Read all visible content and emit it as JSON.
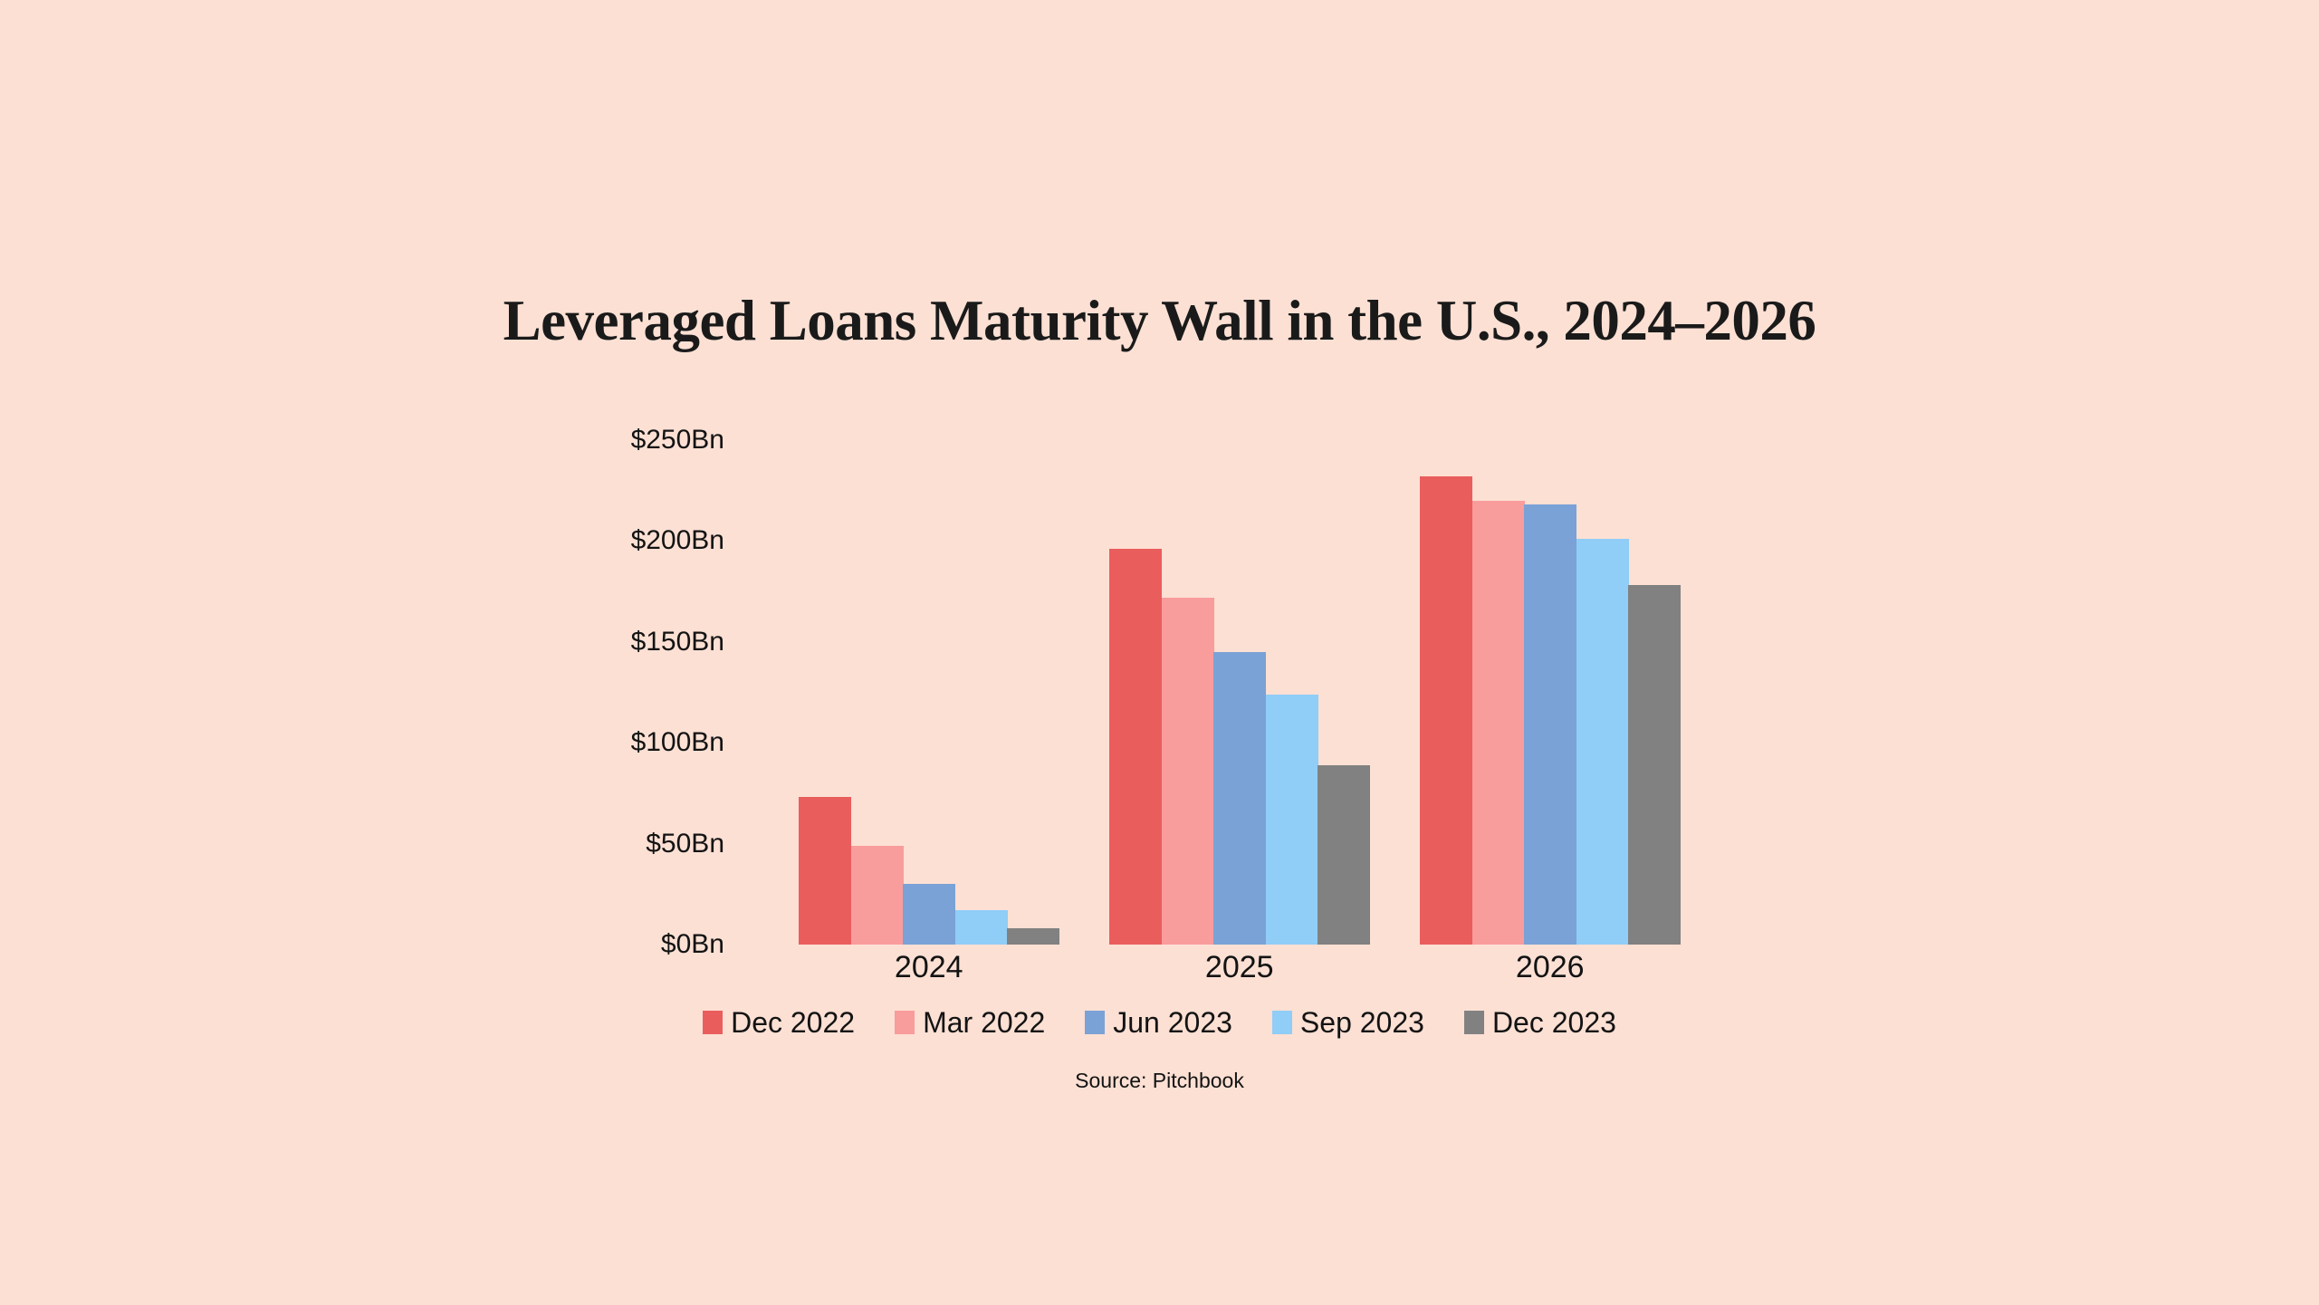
{
  "title": "Leveraged Loans Maturity Wall in the U.S., 2024–2026",
  "source_note": "Source: Pitchbook",
  "colors": {
    "background": "#FCE0D4",
    "text": "#131313",
    "title_text": "#1A1A1A"
  },
  "chart_data": {
    "type": "bar",
    "title": "Leveraged Loans Maturity Wall in the U.S., 2024–2026",
    "xlabel": "",
    "ylabel": "",
    "categories": [
      "2024",
      "2025",
      "2026"
    ],
    "series": [
      {
        "name": "Dec 2022",
        "color": "#EA5D5D",
        "values": [
          73,
          196,
          232
        ]
      },
      {
        "name": "Mar 2022",
        "color": "#F99C9C",
        "values": [
          49,
          172,
          220
        ]
      },
      {
        "name": "Jun 2023",
        "color": "#7AA2D6",
        "values": [
          30,
          145,
          218
        ]
      },
      {
        "name": "Sep 2023",
        "color": "#90CDF7",
        "values": [
          17,
          124,
          201
        ]
      },
      {
        "name": "Dec 2023",
        "color": "#818181",
        "values": [
          8,
          89,
          178
        ]
      }
    ],
    "ylim": [
      0,
      250
    ],
    "ytick_step": 50,
    "ytick_labels": [
      "$0Bn",
      "$50Bn",
      "$100Bn",
      "$150Bn",
      "$200Bn",
      "$250Bn"
    ],
    "grid": false,
    "axis_lines": false,
    "legend_position": "bottom",
    "source": "Source: Pitchbook"
  }
}
